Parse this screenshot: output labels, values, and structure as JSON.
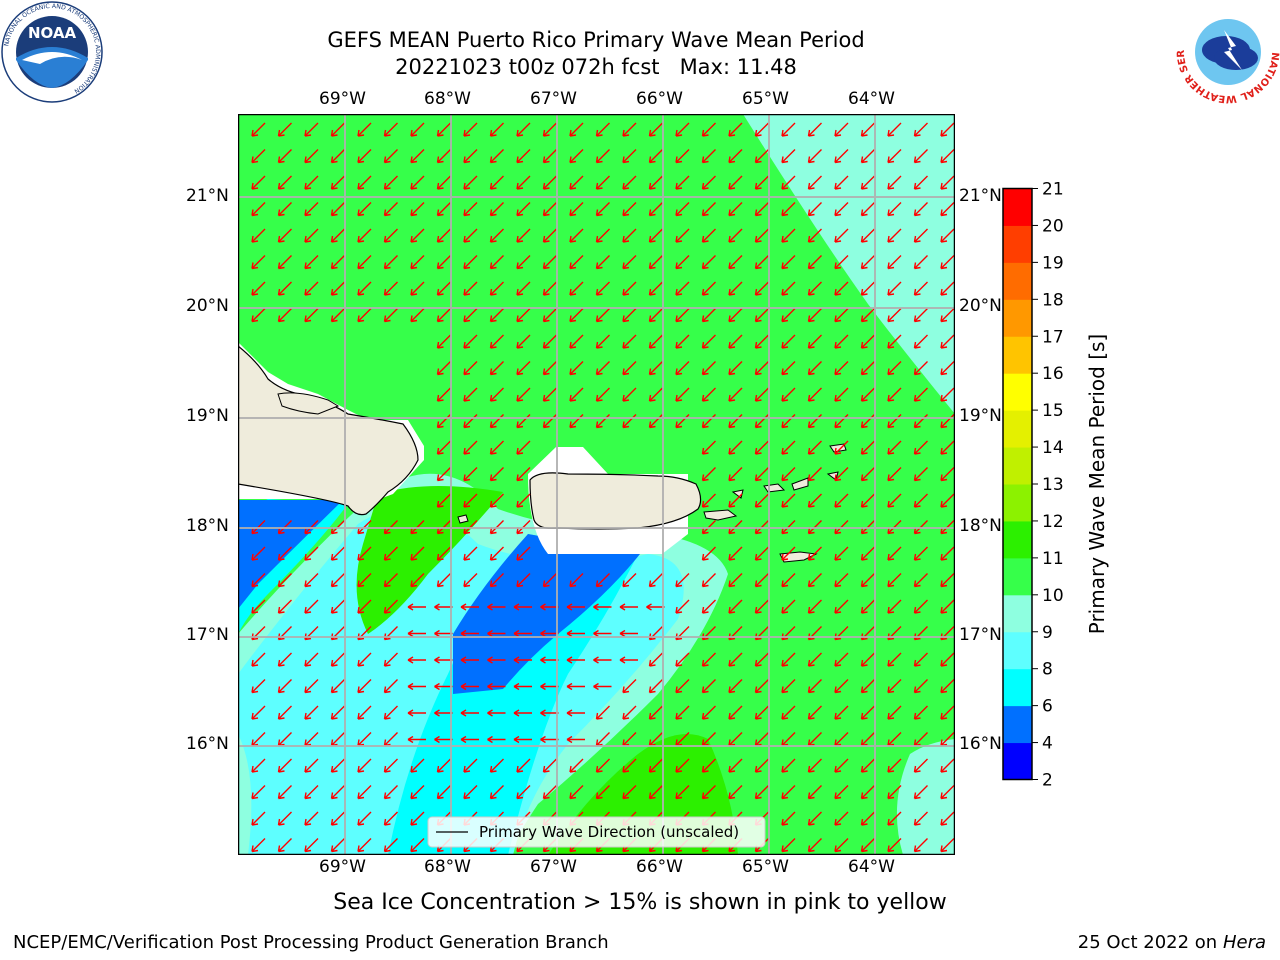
{
  "title": {
    "line1": "GEFS MEAN Puerto Rico Primary Wave Mean Period",
    "line2": "20221023 t00z 072h fcst   Max: 11.48"
  },
  "logos": {
    "left": {
      "text": "NOAA",
      "ring_text": "NATIONAL OCEANIC AND ATMOSPHERIC ADMINISTRATION",
      "icon": "noaa-logo"
    },
    "right": {
      "ring_text": "NATIONAL WEATHER SERVICE",
      "icon": "nws-logo"
    }
  },
  "map": {
    "lon_labels": [
      "69°W",
      "68°W",
      "67°W",
      "66°W",
      "65°W",
      "64°W"
    ],
    "lat_labels": [
      "21°N",
      "20°N",
      "19°N",
      "18°N",
      "17°N",
      "16°N"
    ],
    "legend": "Primary Wave Direction (unscaled)",
    "arrow_color": "#ff0000",
    "land_color": "#efecdc"
  },
  "colorbar": {
    "label": "Primary Wave Mean Period [s]",
    "ticks": [
      "2",
      "4",
      "6",
      "8",
      "9",
      "10",
      "11",
      "12",
      "13",
      "14",
      "15",
      "16",
      "17",
      "18",
      "19",
      "20",
      "21"
    ],
    "colors": [
      "#0000ff",
      "#0070ff",
      "#00ffff",
      "#5effff",
      "#8effe0",
      "#36ff4a",
      "#2cf000",
      "#8cf200",
      "#c0f000",
      "#e4f000",
      "#ffff00",
      "#ffc400",
      "#ff9800",
      "#ff6c00",
      "#ff3e00",
      "#ff0000"
    ]
  },
  "caption": "Sea Ice Concentration > 15% is shown in pink to yellow",
  "footer": {
    "left": "NCEP/EMC/Verification Post Processing Product Generation Branch",
    "date": "25 Oct 2022 on ",
    "machine": "Hera"
  }
}
